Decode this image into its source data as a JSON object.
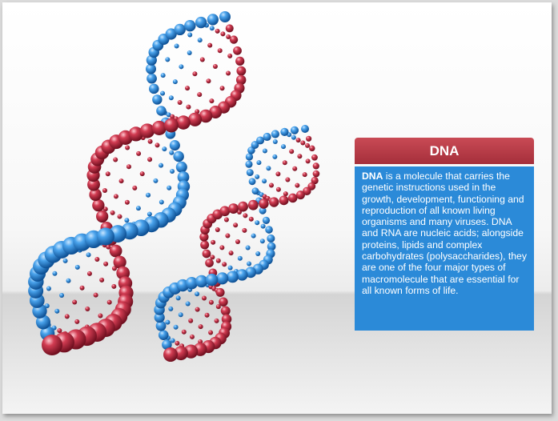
{
  "panel": {
    "title": "DNA",
    "body_bold": "DNA",
    "body_text": " is a molecule that carries the genetic instructions used in the growth, development, functioning and reproduction of all known living organisms and many viruses. DNA and RNA are nucleic acids; alongside proteins, lipids and complex carbohydrates (polysaccharides), they are one of the four major types of macromolecule that are essential for all known forms of life."
  },
  "colors": {
    "panel_header": "#b23a46",
    "panel_body": "#2b8ad8",
    "strand_blue": "#3b8fd6",
    "strand_red": "#c0283c"
  },
  "illustration": {
    "icon": "dna-double-helix-icon",
    "count": 2
  }
}
